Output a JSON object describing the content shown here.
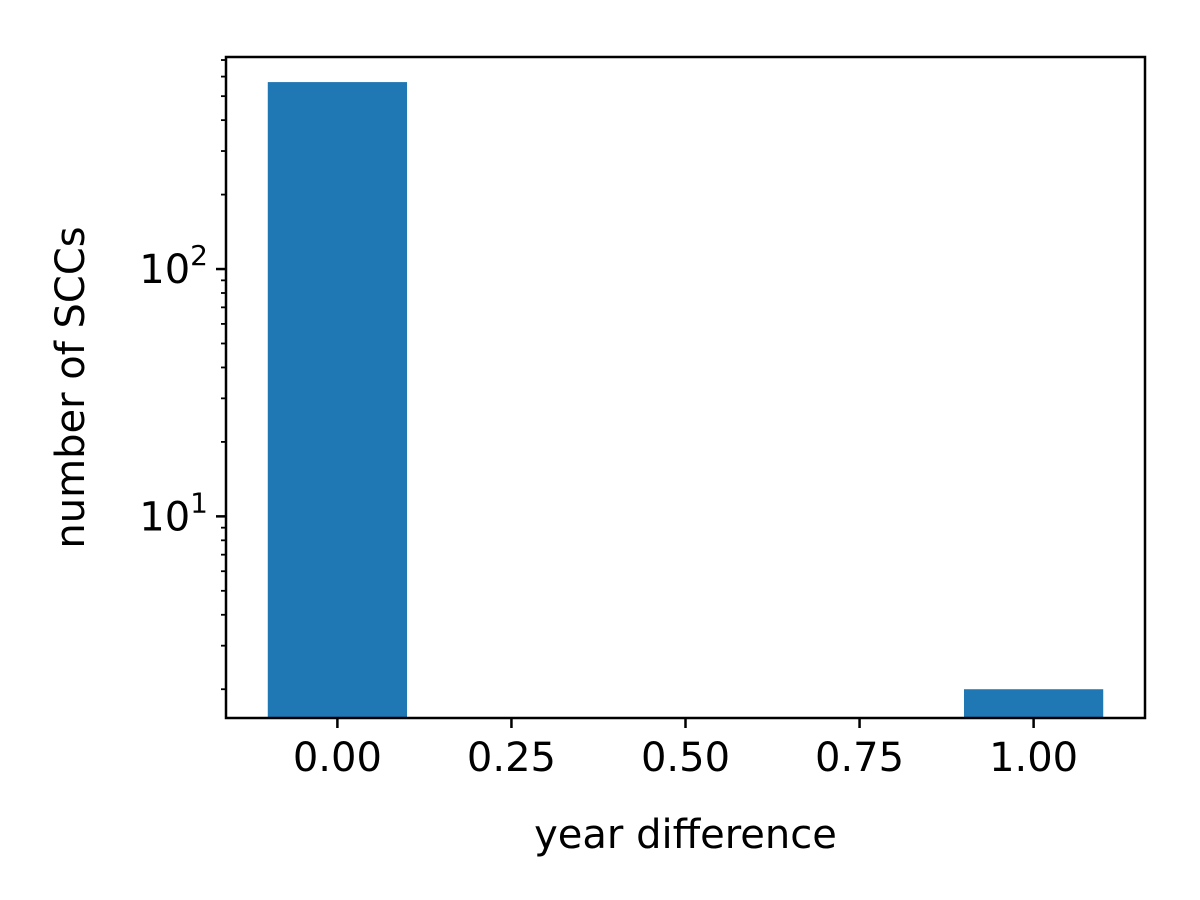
{
  "chart_data": {
    "type": "bar",
    "x": [
      0.0,
      1.0
    ],
    "values": [
      570,
      2
    ],
    "bar_width": 0.2,
    "xlabel": "year difference",
    "ylabel": "number of SCCs",
    "xlim": [
      -0.16,
      1.16
    ],
    "ylim": [
      1.53,
      720
    ],
    "yscale": "log",
    "xticks": [
      0.0,
      0.25,
      0.5,
      0.75,
      1.0
    ],
    "xtick_labels": [
      "0.00",
      "0.25",
      "0.50",
      "0.75",
      "1.00"
    ],
    "yticks": [
      {
        "base": "10",
        "exp": "1",
        "value": 10
      },
      {
        "base": "10",
        "exp": "2",
        "value": 100
      }
    ],
    "bar_color": "#1f77b4",
    "grid": false
  }
}
